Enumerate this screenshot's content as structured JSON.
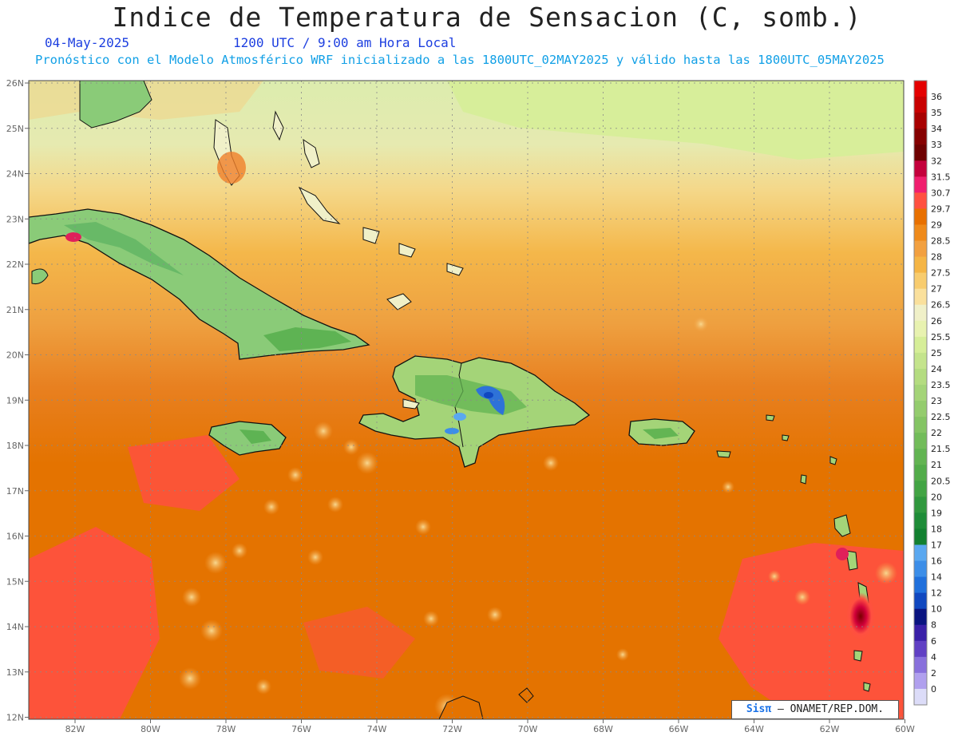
{
  "title": "Indice de Temperatura de Sensacion (C, somb.)",
  "date": "04-May-2025",
  "time": "1200 UTC / 9:00 am Hora Local",
  "forecast_info": "Pronóstico con el Modelo Atmosférico WRF inicializado a las 1800UTC_02MAY2025 y válido hasta las  1800UTC_05MAY2025",
  "lat_labels": [
    "26N",
    "25N",
    "24N",
    "23N",
    "22N",
    "21N",
    "20N",
    "19N",
    "18N",
    "17N",
    "16N",
    "15N",
    "14N",
    "13N",
    "12N"
  ],
  "lon_labels": [
    "82W",
    "80W",
    "78W",
    "76W",
    "74W",
    "72W",
    "70W",
    "68W",
    "66W",
    "64W",
    "62W",
    "60W"
  ],
  "colorbar": {
    "labels": [
      "36",
      "35",
      "34",
      "33",
      "32",
      "31.5",
      "30.7",
      "29.7",
      "29",
      "28.5",
      "28",
      "27.5",
      "27",
      "26.5",
      "26",
      "25.5",
      "25",
      "24",
      "23.5",
      "23",
      "22.5",
      "22",
      "21.5",
      "21",
      "20.5",
      "20",
      "19",
      "18",
      "17",
      "16",
      "14",
      "12",
      "10",
      "8",
      "6",
      "4",
      "2",
      "0"
    ],
    "colors": [
      "#e40000",
      "#c80000",
      "#a80000",
      "#850000",
      "#6e0000",
      "#c4003c",
      "#f01e6e",
      "#ff5040",
      "#e87000",
      "#ef8a1a",
      "#f2a040",
      "#f5b545",
      "#f8cc6e",
      "#fae09c",
      "#f0f0c8",
      "#e8f2b0",
      "#d6ee98",
      "#c4e48c",
      "#b4dc80",
      "#a4d478",
      "#94cc6e",
      "#84c464",
      "#72bc5a",
      "#62b452",
      "#52ac4a",
      "#42a444",
      "#30983e",
      "#1e8c38",
      "#128030",
      "#5aa8f0",
      "#3c8ee8",
      "#2070dc",
      "#1048c0",
      "#0a1480",
      "#3a20a8",
      "#6040c4",
      "#8870dc",
      "#b0a0ee",
      "#dcdcf8"
    ]
  },
  "credit": {
    "brand": "Sisπ",
    "text": "– ONAMET/REP.DOM."
  },
  "colors": {
    "ocean_south": "#e47300",
    "ocean_north": "#dcecae",
    "land": "#8acb78",
    "mountain_core": "#2e72d8"
  }
}
